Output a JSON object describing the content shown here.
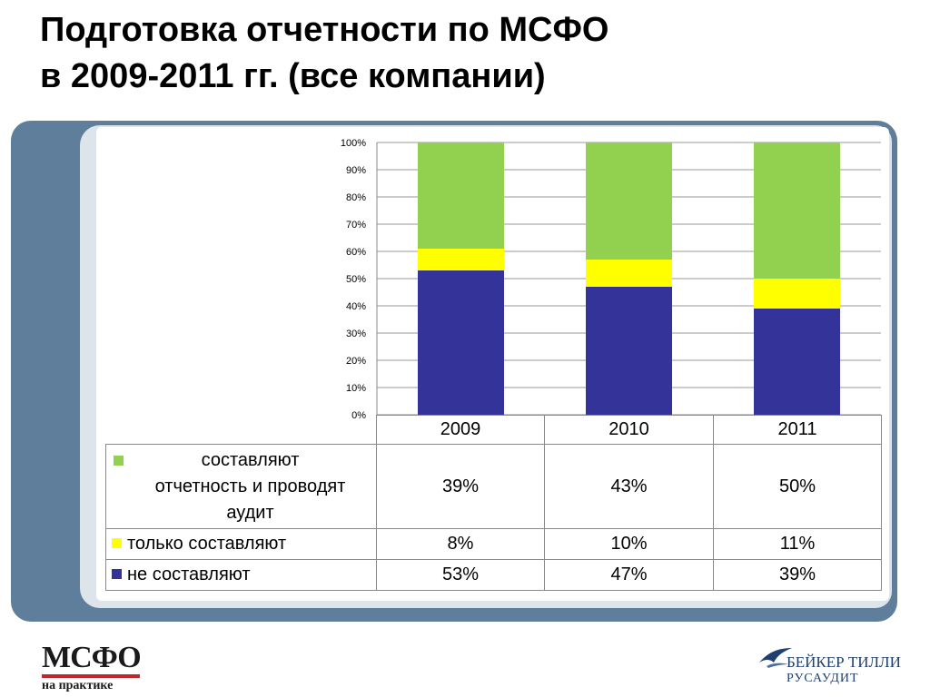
{
  "title": {
    "line1": "Подготовка отчетности по МСФО",
    "line2": "в 2009-2011 гг. (все компании)"
  },
  "chart_data": {
    "type": "bar",
    "stacked": true,
    "percent_stacked": true,
    "title": "Подготовка отчетности по МСФО в 2009-2011 гг. (все компании)",
    "categories": [
      "2009",
      "2010",
      "2011"
    ],
    "series": [
      {
        "name": "не составляют",
        "values": [
          53,
          47,
          39
        ],
        "labels": [
          "53%",
          "47%",
          "39%"
        ],
        "color": "#333399"
      },
      {
        "name": "только составляют",
        "values": [
          8,
          10,
          11
        ],
        "labels": [
          "8%",
          "10%",
          "11%"
        ],
        "color": "#ffff00"
      },
      {
        "name": "составляют отчетность и проводят аудит",
        "values": [
          39,
          43,
          50
        ],
        "labels": [
          "39%",
          "43%",
          "50%"
        ],
        "color": "#92d050"
      }
    ],
    "yticks": [
      "0%",
      "10%",
      "20%",
      "30%",
      "40%",
      "50%",
      "60%",
      "70%",
      "80%",
      "90%",
      "100%"
    ],
    "ylim": [
      0,
      100
    ],
    "grid": true,
    "legend": "data table below chart"
  },
  "table": {
    "headers": [
      "2009",
      "2010",
      "2011"
    ],
    "rows": [
      {
        "label": "составляют отчетность и проводят аудит",
        "lines": [
          "составляют",
          "отчетность и проводят",
          "аудит"
        ],
        "color": "#92d050",
        "cells": [
          "39%",
          "43%",
          "50%"
        ]
      },
      {
        "label": "только составляют",
        "color": "#ffff00",
        "cells": [
          "8%",
          "10%",
          "11%"
        ]
      },
      {
        "label": "не составляют",
        "color": "#333399",
        "cells": [
          "53%",
          "47%",
          "39%"
        ]
      }
    ]
  },
  "logos": {
    "left_big": "МСФО",
    "left_small": "на практике",
    "right_line1": "БЕЙКЕР ТИЛЛИ",
    "right_line2": "РУСАУДИТ"
  },
  "colors": {
    "frame": "#5f7e9b",
    "frame_inner": "#dde4ea",
    "logo_red": "#c0262e",
    "logo_blue": "#1f3f6e"
  }
}
